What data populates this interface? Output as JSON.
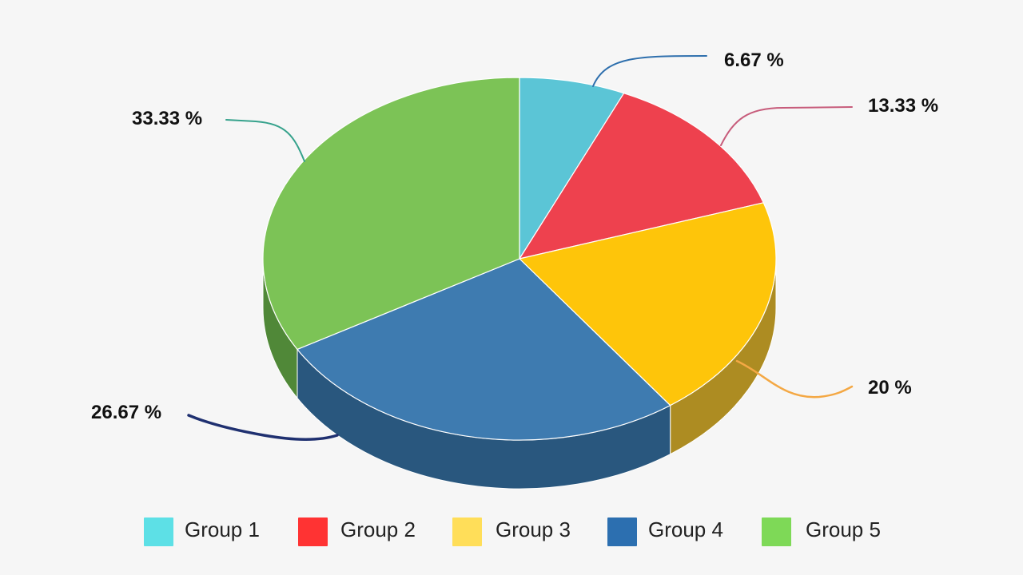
{
  "chart_data": {
    "type": "pie",
    "style": "3d",
    "categories": [
      "Group 1",
      "Group 2",
      "Group 3",
      "Group 4",
      "Group 5"
    ],
    "values": [
      6.67,
      13.33,
      20,
      26.67,
      33.33
    ],
    "value_labels": [
      "6.67 %",
      "13.33 %",
      "20 %",
      "26.67 %",
      "33.33 %"
    ],
    "slice_colors": [
      "#5bc5d6",
      "#ee414e",
      "#fec50a",
      "#3e7bb0",
      "#7cc356"
    ],
    "side_colors": [
      "#3f96a5",
      "#b02d36",
      "#ad8c22",
      "#29577e",
      "#508838"
    ],
    "leader_colors": [
      "#2e6fad",
      "#c75c7b",
      "#f4a844",
      "#1f3070",
      "#36a28c"
    ],
    "legend_colors": [
      "#5de0e6",
      "#ff3333",
      "#ffde59",
      "#2c6fb0",
      "#7ed957"
    ],
    "legend_position": "bottom",
    "title": "",
    "start_angle": "top, clockwise"
  }
}
